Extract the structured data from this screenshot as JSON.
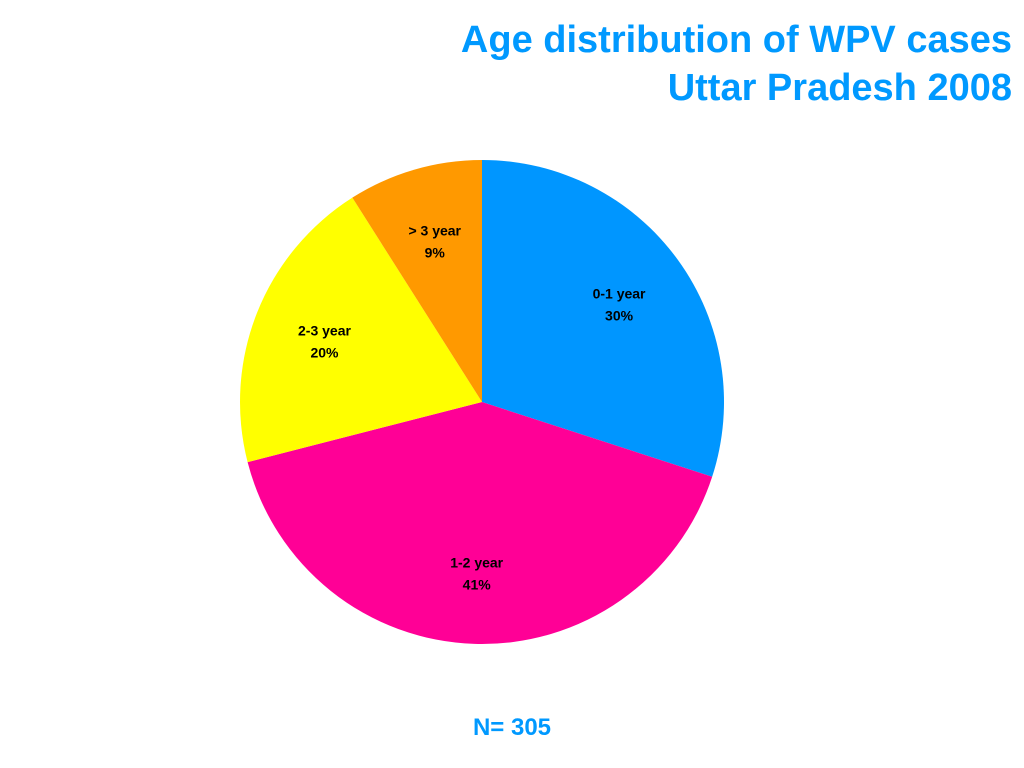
{
  "chart_data": {
    "type": "pie",
    "title": "Age distribution of WPV cases",
    "subtitle": "Uttar Pradesh 2008",
    "slices": [
      {
        "label": "0-1 year",
        "value": 30,
        "display": "30%",
        "color": "#0096ff"
      },
      {
        "label": "1-2 year",
        "value": 41,
        "display": "41%",
        "color": "#ff0096"
      },
      {
        "label": "2-3 year",
        "value": 20,
        "display": "20%",
        "color": "#ffff00"
      },
      {
        "label": "> 3 year",
        "value": 9,
        "display": "9%",
        "color": "#ff9900"
      }
    ],
    "start_angle_deg": 0,
    "direction": "clockwise",
    "legend": "none",
    "title_color": "#0099ff"
  },
  "footnote": "N= 305"
}
